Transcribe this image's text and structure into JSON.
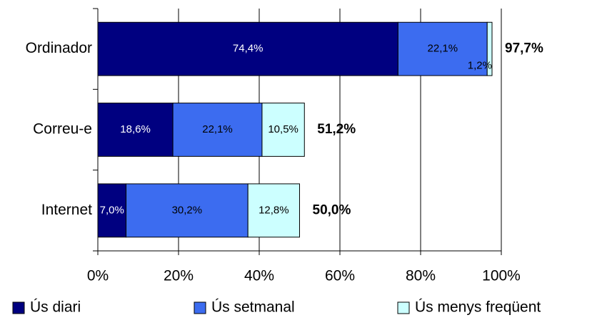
{
  "chart_data": {
    "type": "bar",
    "orientation": "horizontal",
    "stacked": true,
    "categories": [
      "Ordinador",
      "Correu-e",
      "Internet"
    ],
    "series": [
      {
        "name": "Ús diari",
        "color": "#000080",
        "values": [
          74.4,
          18.6,
          7.0
        ],
        "value_labels": [
          "74,4%",
          "18,6%",
          "7,0%"
        ]
      },
      {
        "name": "Ús setmanal",
        "color": "#3c6cf0",
        "values": [
          22.1,
          22.1,
          30.2
        ],
        "value_labels": [
          "22,1%",
          "22,1%",
          "30,2%"
        ]
      },
      {
        "name": "Ús menys freqüent",
        "color": "#ccffff",
        "values": [
          1.2,
          10.5,
          12.8
        ],
        "value_labels": [
          "1,2%",
          "10,5%",
          "12,8%"
        ]
      }
    ],
    "totals": {
      "values": [
        97.7,
        51.2,
        50.0
      ],
      "value_labels": [
        "97,7%",
        "51,2%",
        "50,0%"
      ]
    },
    "xlim": [
      0,
      100
    ],
    "xticks": [
      {
        "value": 0,
        "label": "0%"
      },
      {
        "value": 20,
        "label": "20%"
      },
      {
        "value": 40,
        "label": "40%"
      },
      {
        "value": 60,
        "label": "60%"
      },
      {
        "value": 80,
        "label": "80%"
      },
      {
        "value": 100,
        "label": "100%"
      }
    ],
    "grid": true,
    "legend": "bottom"
  }
}
